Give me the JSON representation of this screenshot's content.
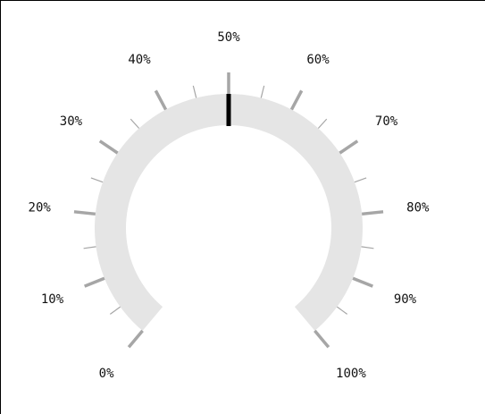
{
  "chart_data": {
    "type": "gauge",
    "min": 0,
    "max": 100,
    "value": 50,
    "major_ticks": [
      0,
      10,
      20,
      30,
      40,
      50,
      60,
      70,
      80,
      90,
      100
    ],
    "minor_ticks": [
      5,
      15,
      25,
      35,
      45,
      55,
      65,
      75,
      85,
      95
    ],
    "tick_labels": [
      "0%",
      "10%",
      "20%",
      "30%",
      "40%",
      "50%",
      "60%",
      "70%",
      "80%",
      "90%",
      "100%"
    ],
    "colors": {
      "track": "#e5e5e5",
      "ticks": "#a6a6a6",
      "needle": "#000000",
      "labels": "#111111"
    }
  }
}
